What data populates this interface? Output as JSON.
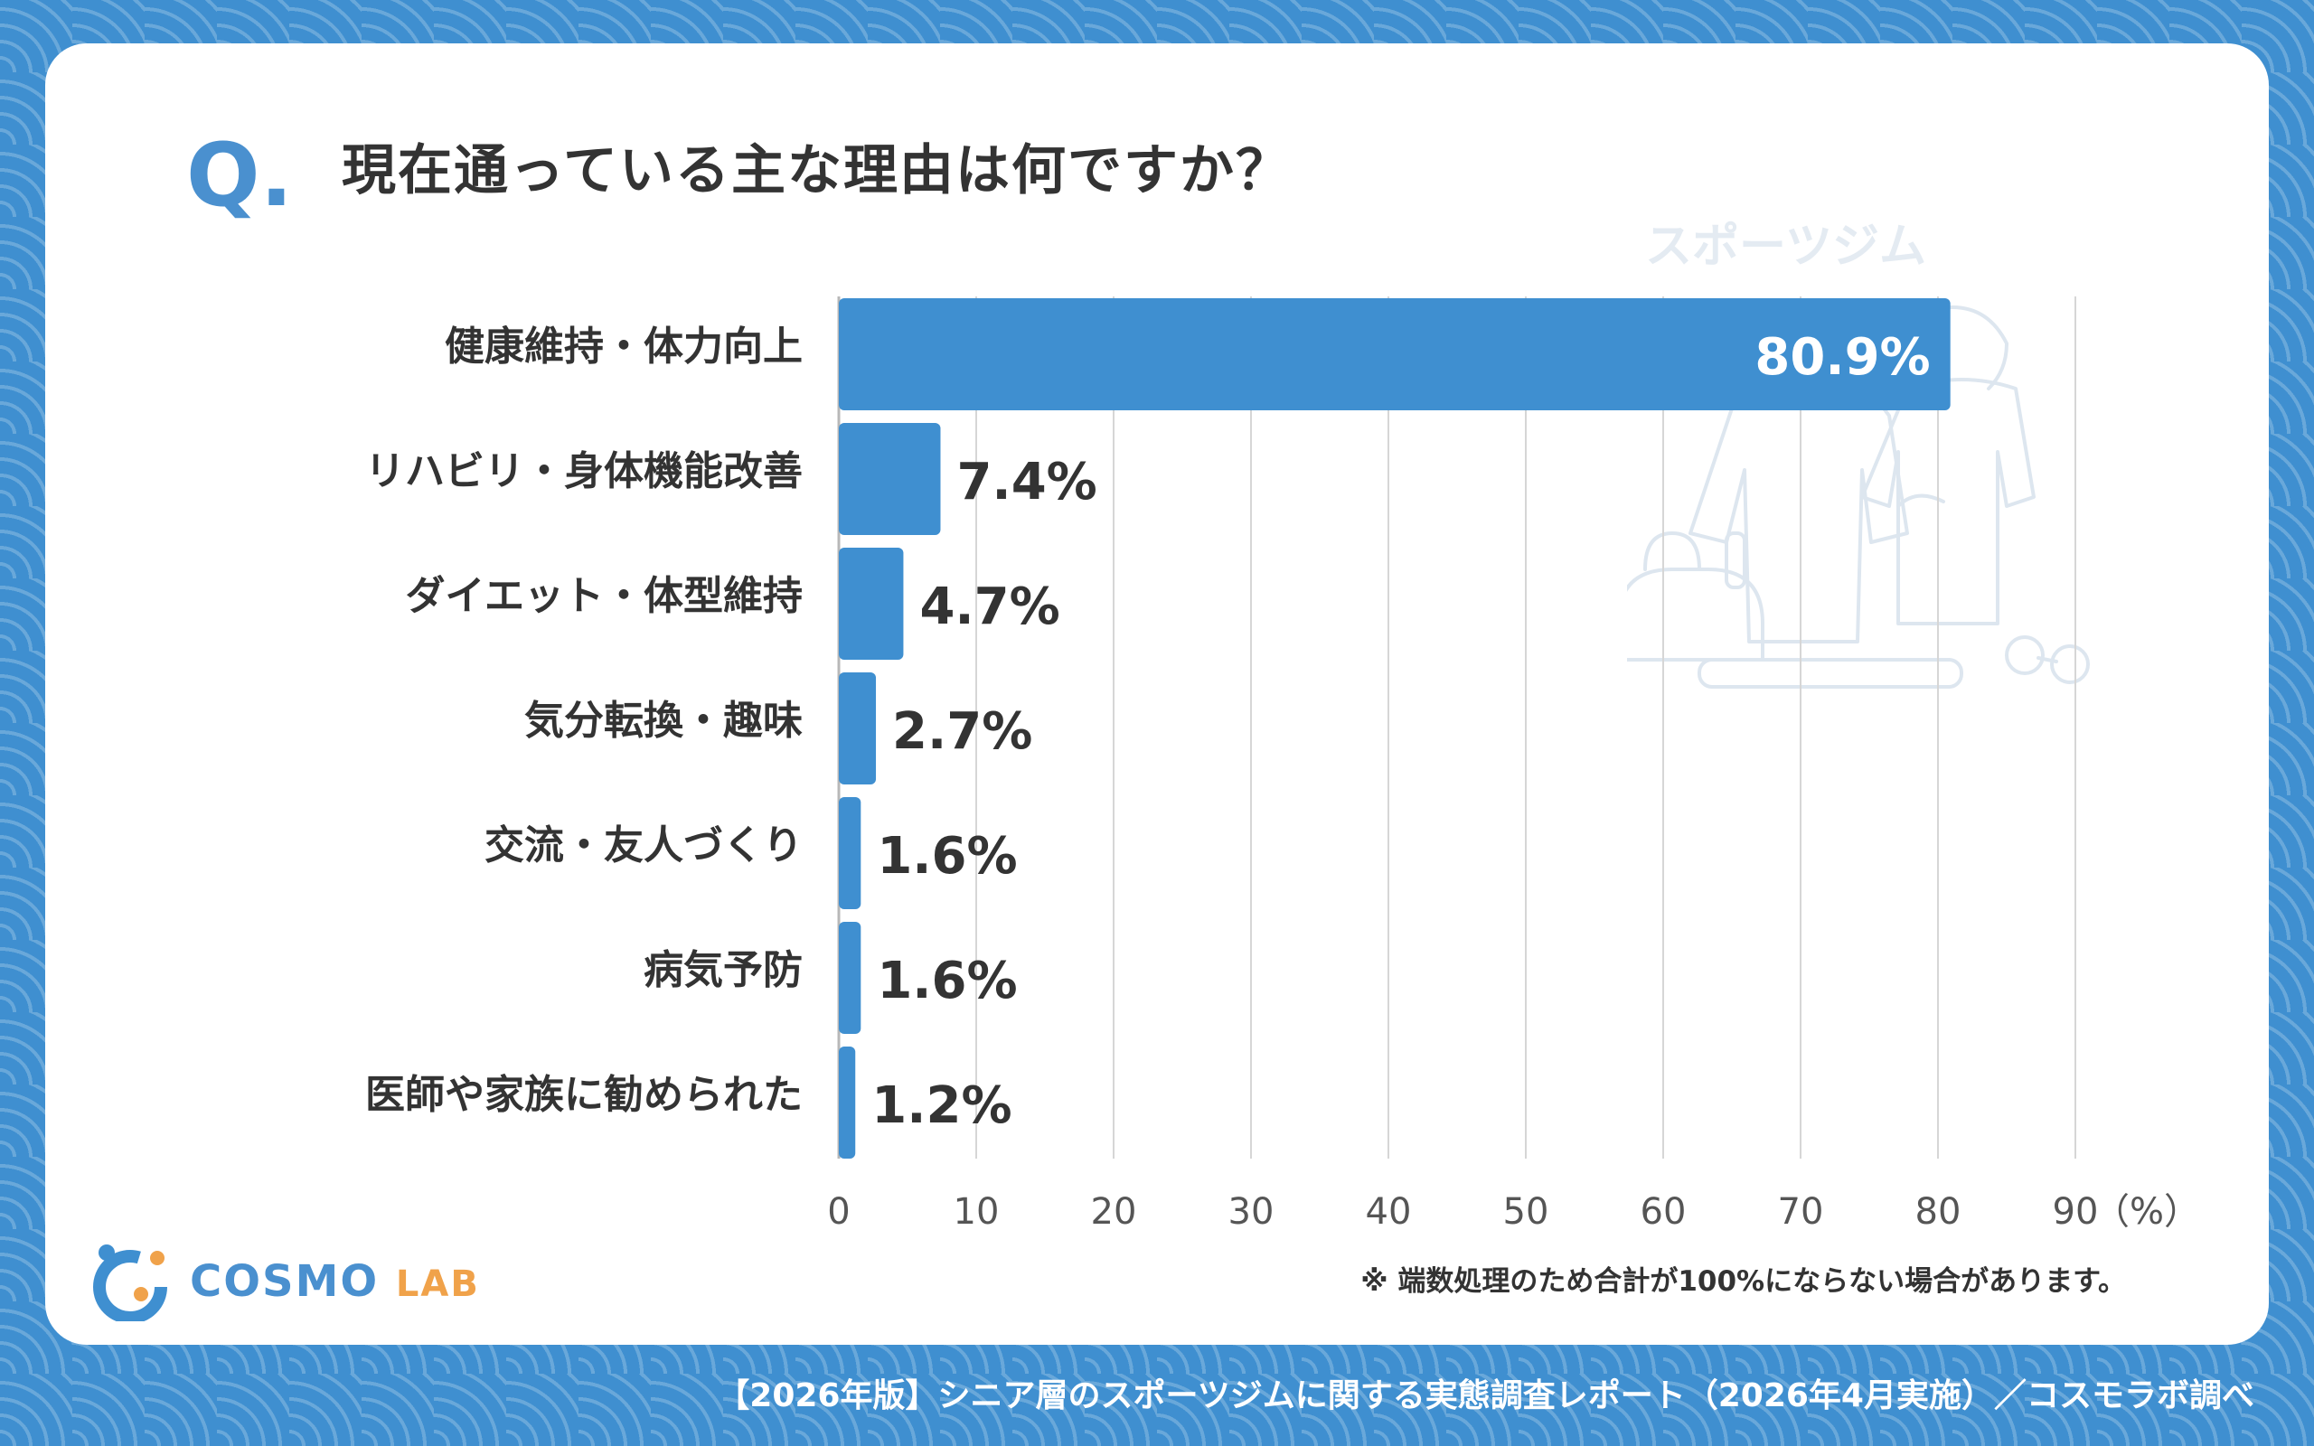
{
  "question": {
    "mark": "Q.",
    "text": "現在通っている主な理由は何ですか？"
  },
  "watermark": {
    "label": "スポーツジム"
  },
  "chart_data": {
    "type": "bar",
    "orientation": "horizontal",
    "categories": [
      "健康維持・体力向上",
      "リハビリ・身体機能改善",
      "ダイエット・体型維持",
      "気分転換・趣味",
      "交流・友人づくり",
      "病気予防",
      "医師や家族に勧められた"
    ],
    "values": [
      80.9,
      7.4,
      4.7,
      2.7,
      1.6,
      1.6,
      1.2
    ],
    "value_labels": [
      "80.9%",
      "7.4%",
      "4.7%",
      "2.7%",
      "1.6%",
      "1.6%",
      "1.2%"
    ],
    "xlim": [
      0,
      90
    ],
    "ticks": [
      "0",
      "10",
      "20",
      "30",
      "40",
      "50",
      "60",
      "70",
      "80",
      "90"
    ],
    "unit_label": "（%）",
    "grid": true,
    "bar_color": "#3f8fd0"
  },
  "note": "※ 端数処理のため合計が100%にならない場合があります。",
  "logo": {
    "name": "COSMO",
    "suffix": "LAB"
  },
  "footer": "【2026年版】シニア層のスポーツジムに関する実態調査レポート（2026年4月実施）／コスモラボ調べ",
  "colors": {
    "background": "#3f8fd0",
    "accent": "#4a90cf",
    "text": "#333333",
    "logo_accent": "#f0a24a"
  }
}
